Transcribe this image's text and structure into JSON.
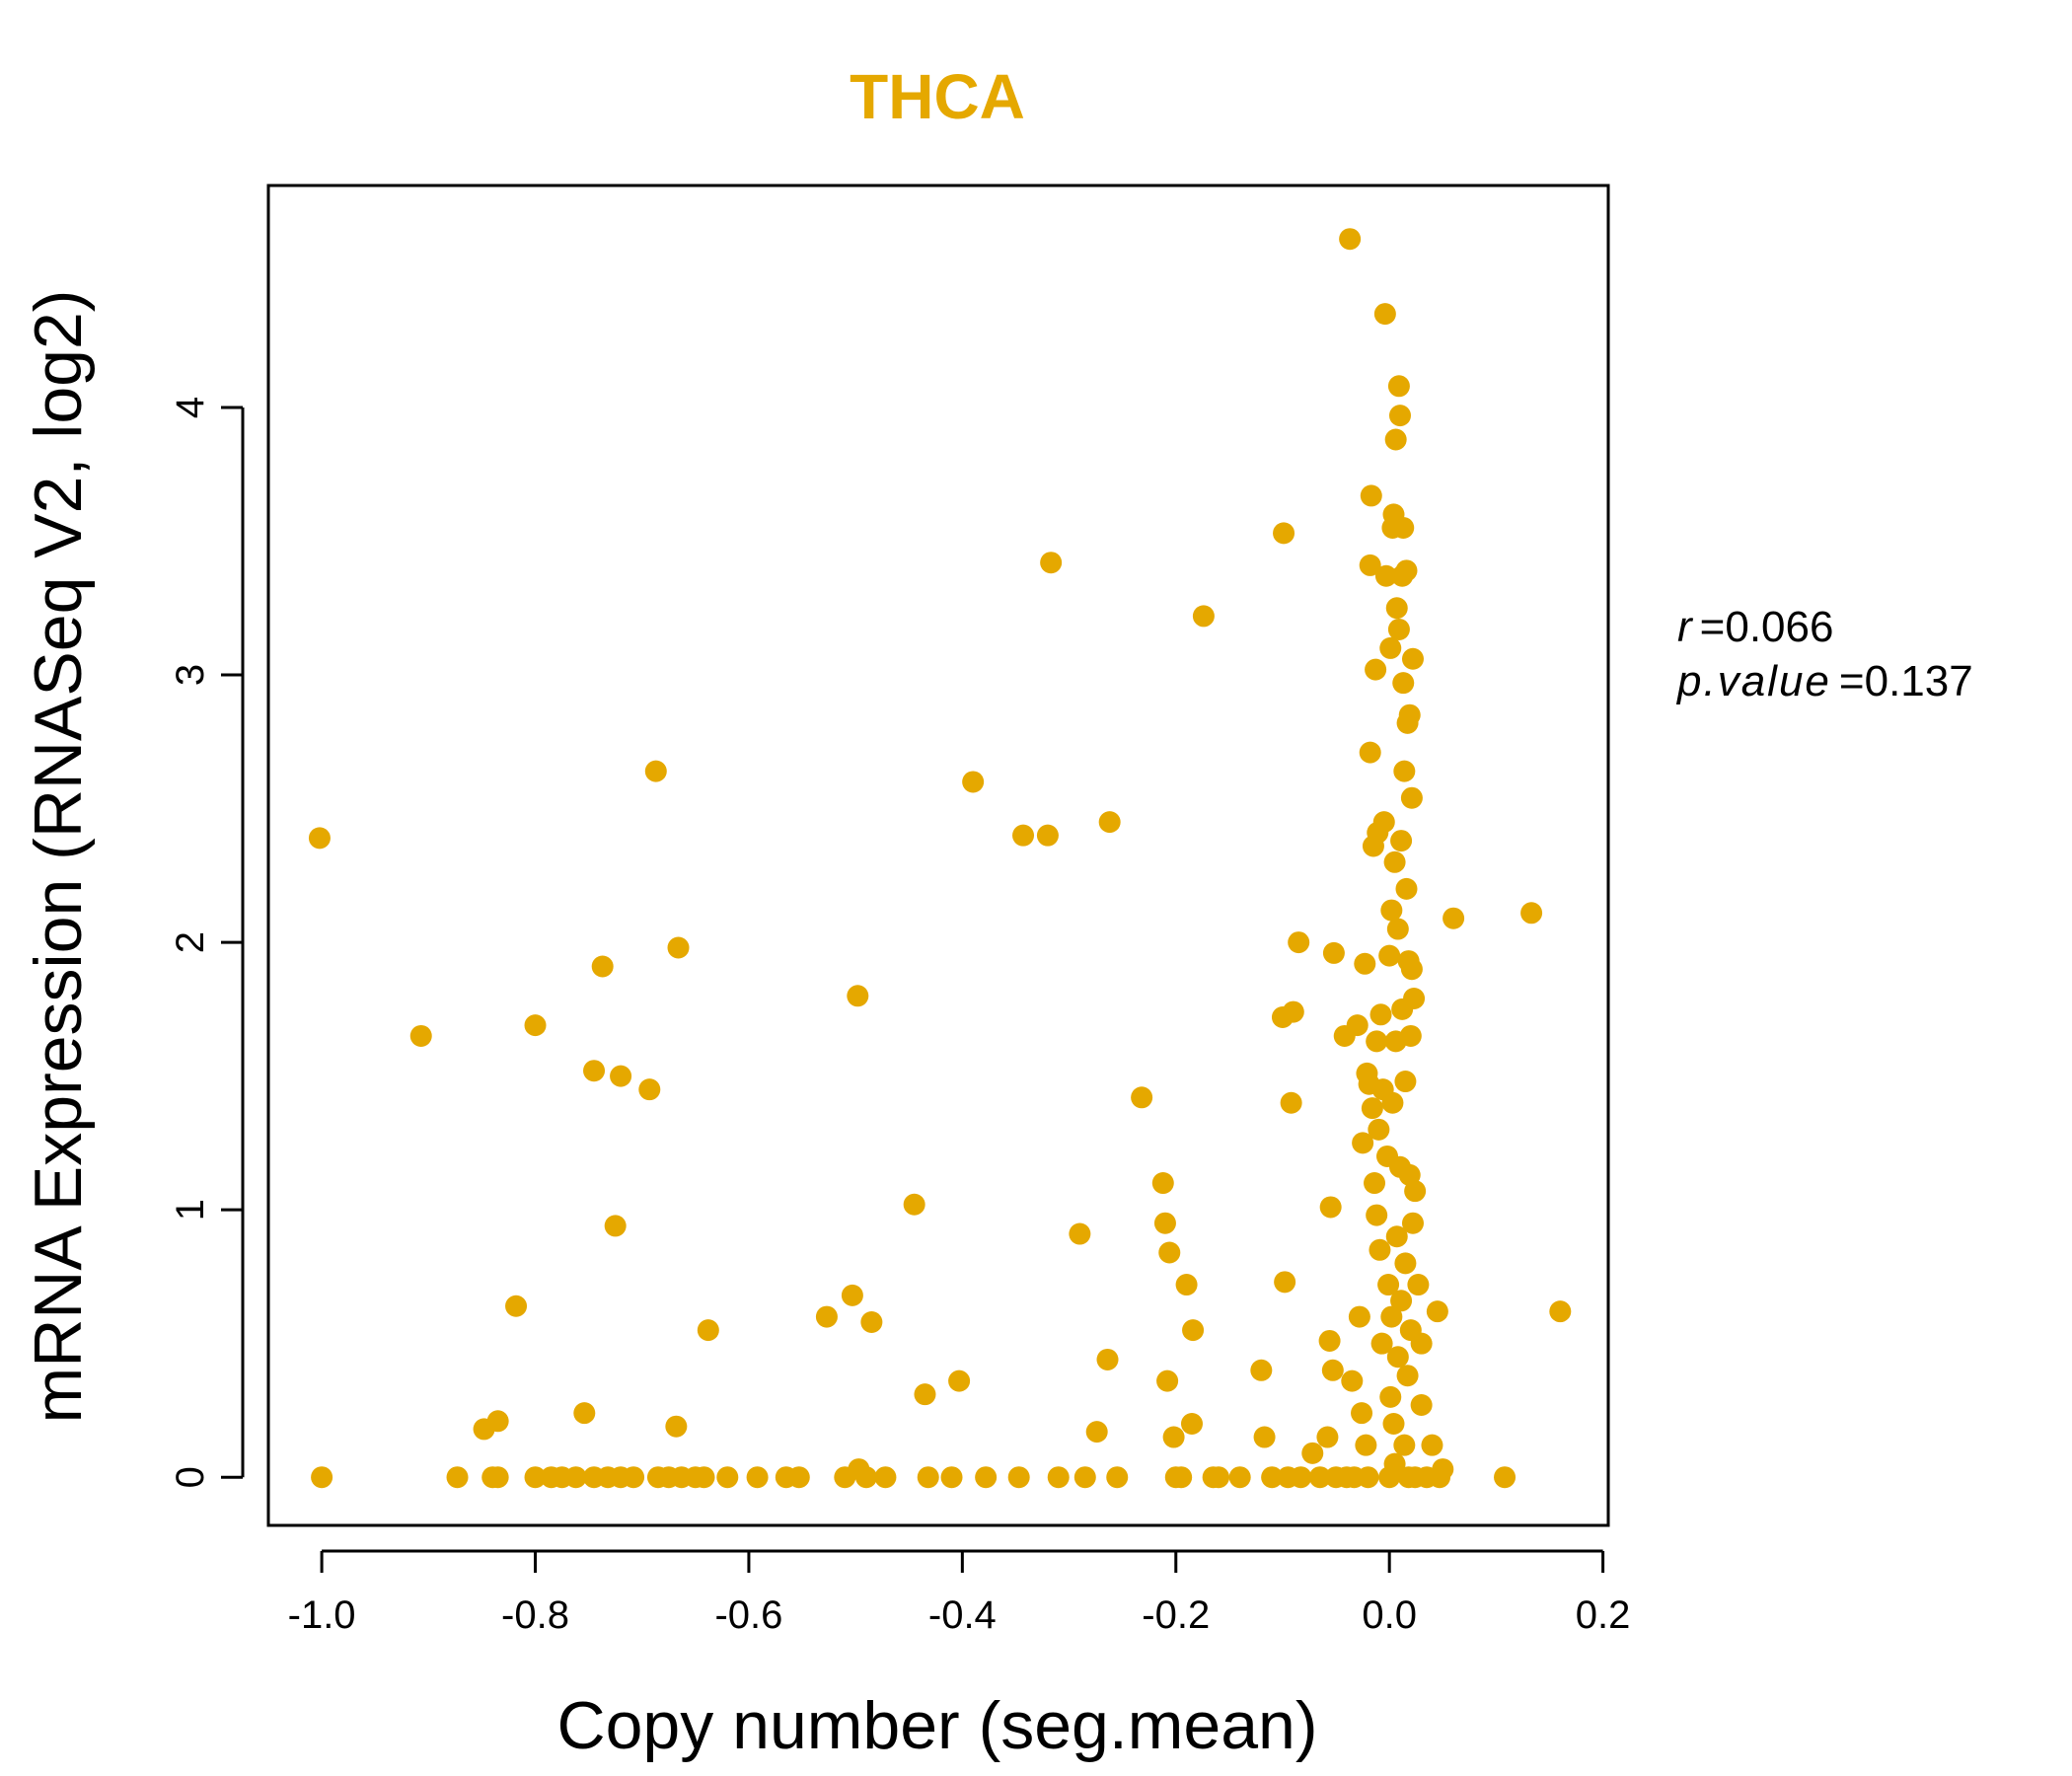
{
  "chart_data": {
    "type": "scatter",
    "title": "THCA",
    "xlabel": "Copy number (seg.mean)",
    "ylabel": "mRNA Expression (RNASeq V2, log2)",
    "xlim": [
      -1.05,
      0.205
    ],
    "ylim": [
      -0.18,
      4.83
    ],
    "x_ticks": [
      -1.0,
      -0.8,
      -0.6,
      -0.4,
      -0.2,
      0.0,
      0.2
    ],
    "x_tick_labels": [
      "-1.0",
      "-0.8",
      "-0.6",
      "-0.4",
      "-0.2",
      "0.0",
      "0.2"
    ],
    "y_ticks": [
      0,
      1,
      2,
      3,
      4
    ],
    "y_tick_labels": [
      "0",
      "1",
      "2",
      "3",
      "4"
    ],
    "grid": false,
    "color": "#E5A800",
    "stats": {
      "r_label": "r",
      "r_value": "0.066",
      "p_label": "p.value",
      "p_value": "0.137"
    },
    "series": [
      {
        "points": [
          [
            -1.002,
            2.39
          ],
          [
            -1.0,
            0.0
          ],
          [
            -0.907,
            1.65
          ],
          [
            -0.873,
            0.0
          ],
          [
            -0.848,
            0.18
          ],
          [
            -0.84,
            0.0
          ],
          [
            -0.835,
            0.21
          ],
          [
            -0.835,
            0.0
          ],
          [
            -0.818,
            0.64
          ],
          [
            -0.8,
            1.69
          ],
          [
            -0.8,
            0.0
          ],
          [
            -0.785,
            0.0
          ],
          [
            -0.775,
            0.0
          ],
          [
            -0.762,
            0.0
          ],
          [
            -0.754,
            0.24
          ],
          [
            -0.745,
            1.52
          ],
          [
            -0.745,
            0.0
          ],
          [
            -0.737,
            1.91
          ],
          [
            -0.732,
            0.0
          ],
          [
            -0.725,
            0.94
          ],
          [
            -0.72,
            1.5
          ],
          [
            -0.72,
            0.0
          ],
          [
            -0.708,
            0.0
          ],
          [
            -0.693,
            1.45
          ],
          [
            -0.687,
            2.64
          ],
          [
            -0.685,
            0.0
          ],
          [
            -0.675,
            0.0
          ],
          [
            -0.668,
            0.19
          ],
          [
            -0.666,
            1.98
          ],
          [
            -0.663,
            0.0
          ],
          [
            -0.65,
            0.0
          ],
          [
            -0.642,
            0.0
          ],
          [
            -0.638,
            0.55
          ],
          [
            -0.62,
            0.0
          ],
          [
            -0.592,
            0.0
          ],
          [
            -0.565,
            0.0
          ],
          [
            -0.553,
            0.0
          ],
          [
            -0.527,
            0.6
          ],
          [
            -0.51,
            0.0
          ],
          [
            -0.503,
            0.68
          ],
          [
            -0.498,
            1.8
          ],
          [
            -0.497,
            0.03
          ],
          [
            -0.49,
            0.0
          ],
          [
            -0.485,
            0.58
          ],
          [
            -0.472,
            0.0
          ],
          [
            -0.445,
            1.02
          ],
          [
            -0.435,
            0.31
          ],
          [
            -0.432,
            0.0
          ],
          [
            -0.41,
            0.0
          ],
          [
            -0.403,
            0.36
          ],
          [
            -0.39,
            2.6
          ],
          [
            -0.378,
            0.0
          ],
          [
            -0.347,
            0.0
          ],
          [
            -0.343,
            2.4
          ],
          [
            -0.32,
            2.4
          ],
          [
            -0.317,
            3.42
          ],
          [
            -0.31,
            0.0
          ],
          [
            -0.29,
            0.91
          ],
          [
            -0.285,
            0.0
          ],
          [
            -0.274,
            0.17
          ],
          [
            -0.264,
            0.44
          ],
          [
            -0.262,
            2.45
          ],
          [
            -0.255,
            0.0
          ],
          [
            -0.232,
            1.42
          ],
          [
            -0.212,
            1.1
          ],
          [
            -0.21,
            0.95
          ],
          [
            -0.208,
            0.36
          ],
          [
            -0.206,
            0.84
          ],
          [
            -0.202,
            0.15
          ],
          [
            -0.2,
            0.0
          ],
          [
            -0.195,
            0.0
          ],
          [
            -0.19,
            0.72
          ],
          [
            -0.185,
            0.2
          ],
          [
            -0.184,
            0.55
          ],
          [
            -0.174,
            3.22
          ],
          [
            -0.165,
            0.0
          ],
          [
            -0.16,
            0.0
          ],
          [
            -0.14,
            0.0
          ],
          [
            -0.12,
            0.4
          ],
          [
            -0.117,
            0.15
          ],
          [
            -0.11,
            0.0
          ],
          [
            -0.1,
            1.72
          ],
          [
            -0.099,
            3.53
          ],
          [
            -0.098,
            0.73
          ],
          [
            -0.095,
            0.0
          ],
          [
            -0.092,
            1.4
          ],
          [
            -0.09,
            1.74
          ],
          [
            -0.085,
            2.0
          ],
          [
            -0.083,
            0.0
          ],
          [
            -0.072,
            0.09
          ],
          [
            -0.065,
            0.0
          ],
          [
            -0.058,
            0.15
          ],
          [
            -0.056,
            0.51
          ],
          [
            -0.055,
            1.01
          ],
          [
            -0.053,
            0.4
          ],
          [
            -0.052,
            1.96
          ],
          [
            -0.05,
            0.0
          ],
          [
            -0.042,
            1.65
          ],
          [
            -0.04,
            0.0
          ],
          [
            -0.037,
            4.63
          ],
          [
            -0.035,
            0.36
          ],
          [
            -0.033,
            0.0
          ],
          [
            -0.03,
            1.69
          ],
          [
            -0.028,
            0.6
          ],
          [
            -0.026,
            0.24
          ],
          [
            -0.025,
            1.25
          ],
          [
            -0.023,
            1.92
          ],
          [
            -0.022,
            0.12
          ],
          [
            -0.021,
            1.51
          ],
          [
            -0.02,
            0.0
          ],
          [
            -0.019,
            1.47
          ],
          [
            -0.018,
            3.41
          ],
          [
            -0.018,
            2.71
          ],
          [
            -0.017,
            3.67
          ],
          [
            -0.016,
            1.38
          ],
          [
            -0.015,
            2.36
          ],
          [
            -0.014,
            1.1
          ],
          [
            -0.013,
            3.02
          ],
          [
            -0.012,
            1.63
          ],
          [
            -0.012,
            0.98
          ],
          [
            -0.011,
            2.41
          ],
          [
            -0.01,
            1.3
          ],
          [
            -0.009,
            0.85
          ],
          [
            -0.008,
            1.73
          ],
          [
            -0.007,
            0.5
          ],
          [
            -0.006,
            1.45
          ],
          [
            -0.005,
            2.45
          ],
          [
            -0.004,
            4.35
          ],
          [
            -0.003,
            3.37
          ],
          [
            -0.002,
            1.2
          ],
          [
            -0.001,
            0.72
          ],
          [
            0.0,
            0.0
          ],
          [
            0.0,
            1.95
          ],
          [
            0.001,
            0.3
          ],
          [
            0.001,
            3.1
          ],
          [
            0.002,
            2.12
          ],
          [
            0.002,
            0.6
          ],
          [
            0.003,
            3.55
          ],
          [
            0.003,
            1.4
          ],
          [
            0.004,
            0.2
          ],
          [
            0.004,
            3.6
          ],
          [
            0.005,
            2.3
          ],
          [
            0.005,
            0.05
          ],
          [
            0.006,
            3.88
          ],
          [
            0.006,
            1.63
          ],
          [
            0.007,
            0.9
          ],
          [
            0.007,
            3.25
          ],
          [
            0.008,
            2.05
          ],
          [
            0.008,
            0.45
          ],
          [
            0.009,
            4.08
          ],
          [
            0.009,
            3.17
          ],
          [
            0.01,
            1.16
          ],
          [
            0.01,
            3.97
          ],
          [
            0.011,
            0.66
          ],
          [
            0.011,
            2.38
          ],
          [
            0.012,
            3.37
          ],
          [
            0.012,
            1.75
          ],
          [
            0.013,
            3.55
          ],
          [
            0.013,
            2.97
          ],
          [
            0.014,
            0.12
          ],
          [
            0.014,
            2.64
          ],
          [
            0.015,
            1.48
          ],
          [
            0.015,
            0.8
          ],
          [
            0.016,
            3.39
          ],
          [
            0.016,
            2.2
          ],
          [
            0.017,
            0.38
          ],
          [
            0.017,
            2.82
          ],
          [
            0.018,
            1.93
          ],
          [
            0.018,
            0.0
          ],
          [
            0.019,
            1.13
          ],
          [
            0.019,
            2.85
          ],
          [
            0.02,
            0.55
          ],
          [
            0.02,
            1.65
          ],
          [
            0.021,
            1.9
          ],
          [
            0.021,
            2.54
          ],
          [
            0.022,
            0.95
          ],
          [
            0.022,
            3.06
          ],
          [
            0.023,
            1.79
          ],
          [
            0.024,
            0.0
          ],
          [
            0.024,
            1.07
          ],
          [
            0.027,
            0.72
          ],
          [
            0.03,
            0.5
          ],
          [
            0.03,
            0.27
          ],
          [
            0.035,
            0.0
          ],
          [
            0.04,
            0.12
          ],
          [
            0.045,
            0.62
          ],
          [
            0.047,
            0.0
          ],
          [
            0.05,
            0.03
          ],
          [
            0.06,
            2.09
          ],
          [
            0.108,
            0.0
          ],
          [
            0.133,
            2.11
          ],
          [
            0.16,
            0.62
          ]
        ]
      }
    ]
  }
}
